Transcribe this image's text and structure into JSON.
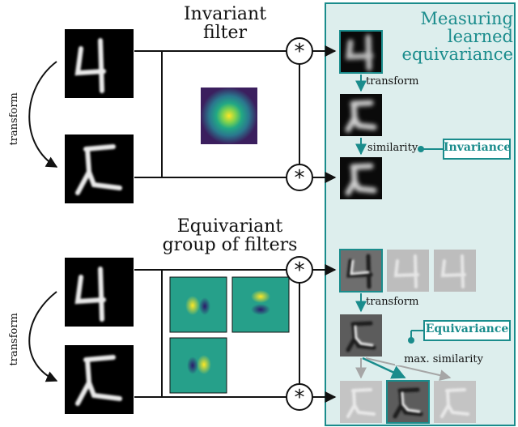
{
  "top": {
    "title_line1": "Invariant",
    "title_line2": "filter",
    "transform_label": "transform",
    "conv_symbol": "*"
  },
  "bottom": {
    "title_line1": "Equivariant",
    "title_line2": "group of filters",
    "transform_label": "transform",
    "conv_symbol": "*"
  },
  "panel": {
    "title_line1": "Measuring",
    "title_line2": "learned",
    "title_line3": "equivariance",
    "transform_label_top": "transform",
    "similarity_label": "similarity",
    "invariance_badge": "Invariance",
    "transform_label_bottom": "transform",
    "equivariance_badge": "Equivariance",
    "max_similarity_label": "max. similarity"
  },
  "colors": {
    "teal": "#1a8c8c",
    "panel_bg": "#ddeeed",
    "viridis_dark": "#3b1f5e",
    "viridis_mid": "#1f9a8a",
    "viridis_bright": "#fde725"
  }
}
